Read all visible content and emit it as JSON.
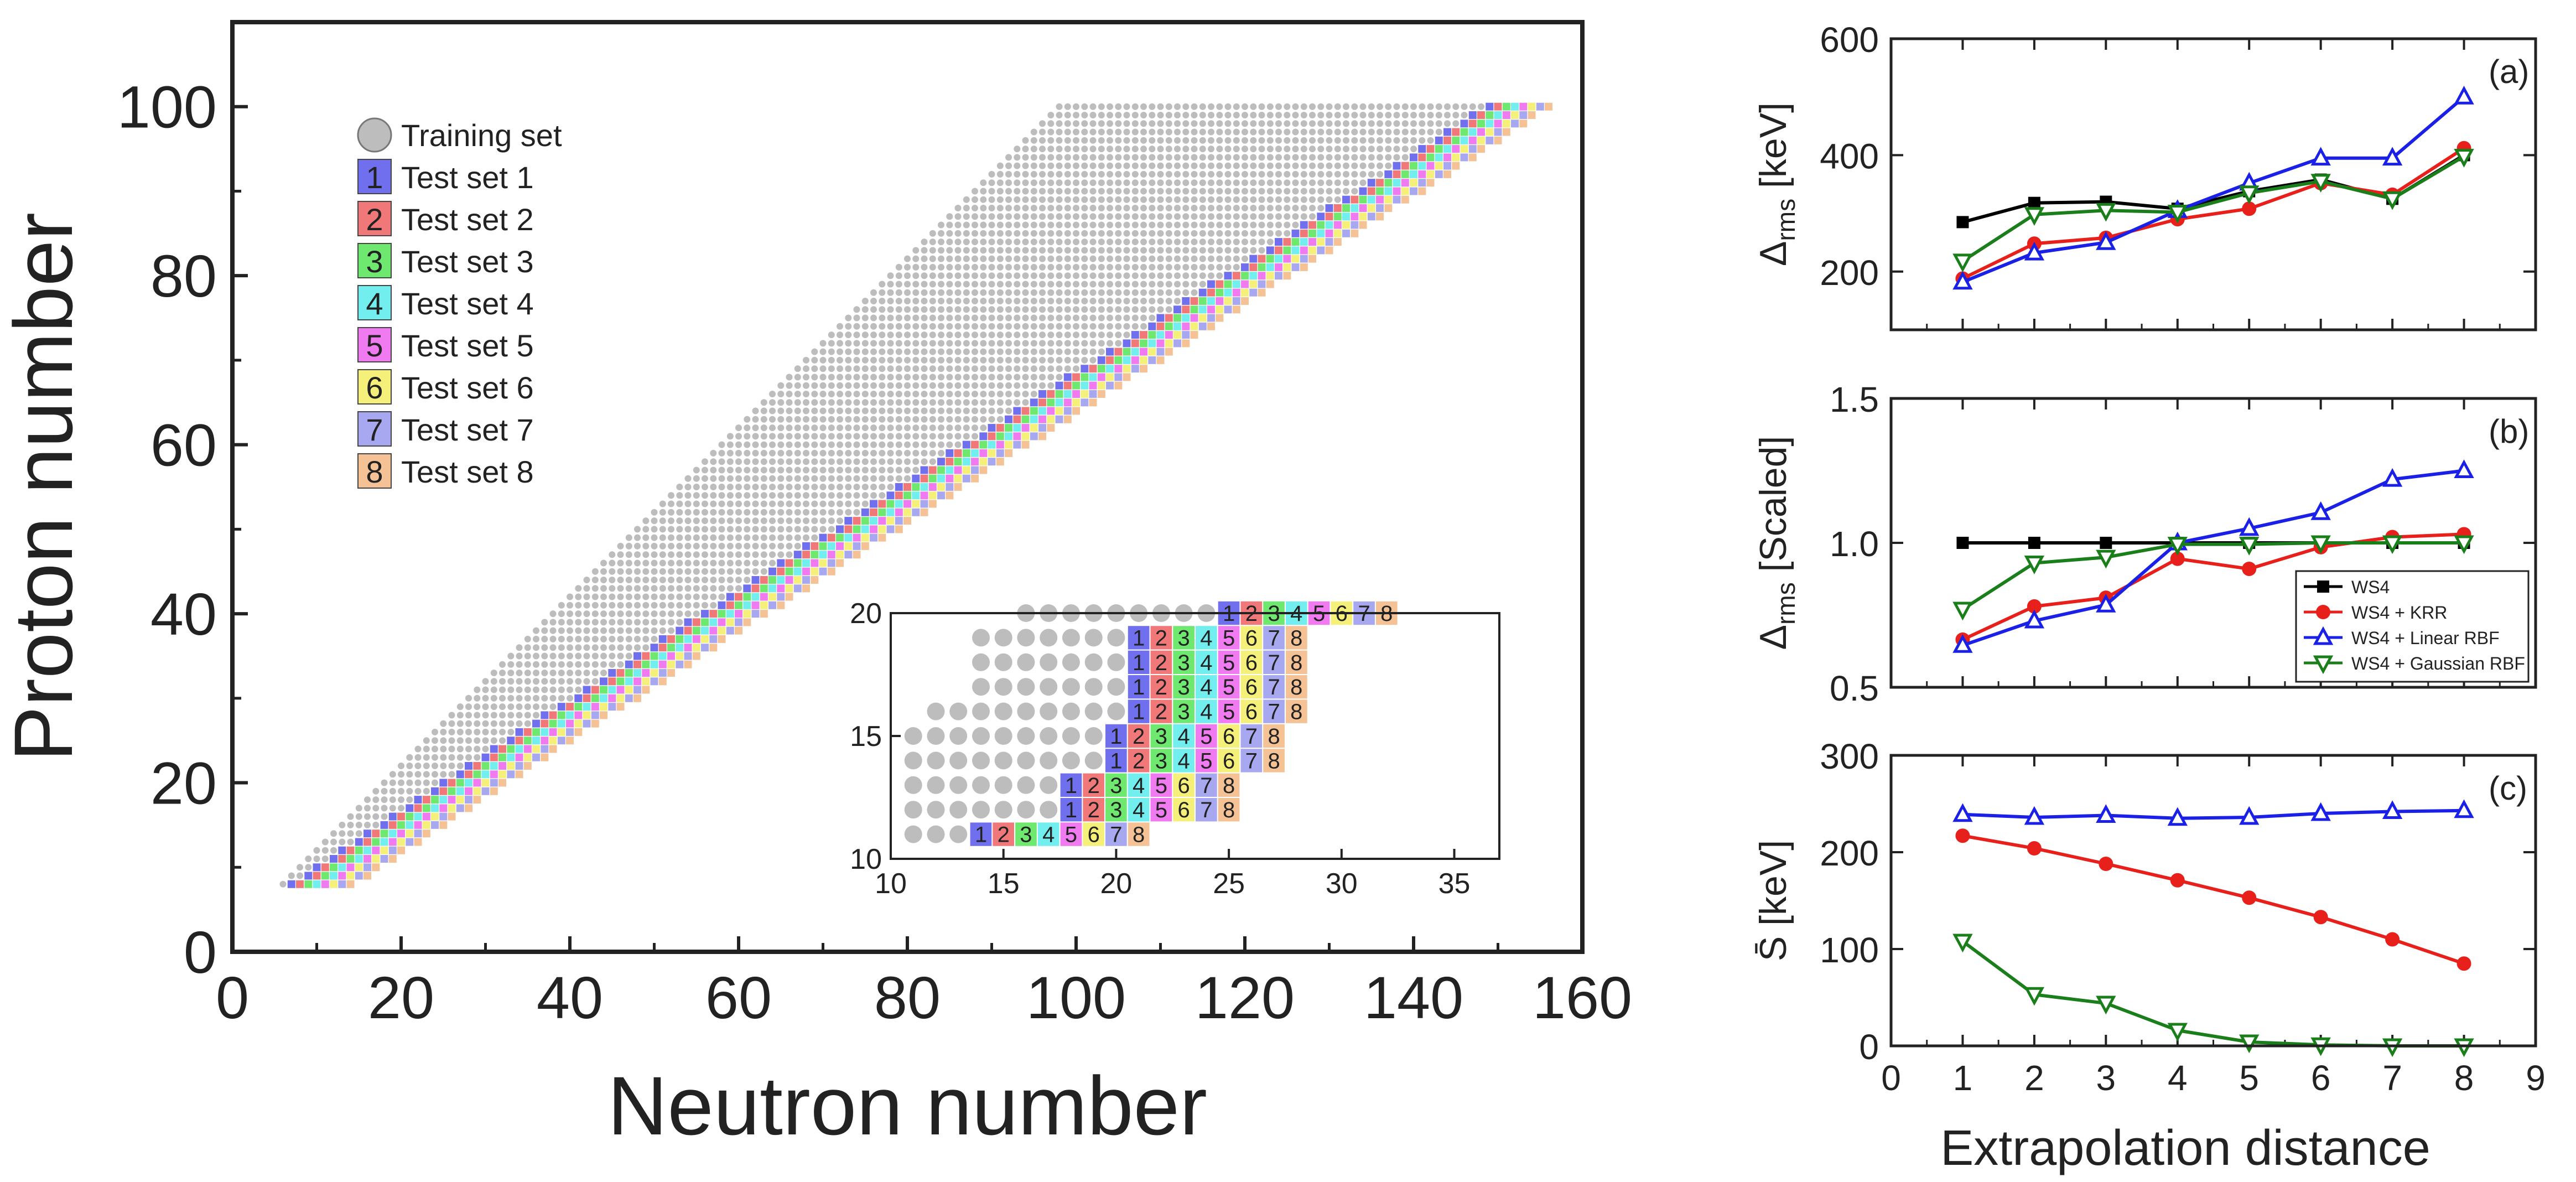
{
  "chart_data": [
    {
      "id": "nuclide-chart",
      "type": "scatter",
      "xlabel": "Neutron number",
      "ylabel": "Proton number",
      "xlim": [
        0,
        160
      ],
      "ylim": [
        0,
        110
      ],
      "xticks": [
        0,
        20,
        40,
        60,
        80,
        100,
        120,
        140,
        160
      ],
      "yticks": [
        0,
        20,
        40,
        60,
        80,
        100
      ],
      "legend_position": "top-left",
      "legend": [
        {
          "label": "Training set",
          "marker": "circle",
          "color": "#bdbdbd"
        },
        {
          "label": "Test set 1",
          "num": "1",
          "color": "#7070ee"
        },
        {
          "label": "Test set 2",
          "num": "2",
          "color": "#f07878"
        },
        {
          "label": "Test set 3",
          "num": "3",
          "color": "#6ee86e"
        },
        {
          "label": "Test set 4",
          "num": "4",
          "color": "#72eeee"
        },
        {
          "label": "Test set 5",
          "num": "5",
          "color": "#f07af0"
        },
        {
          "label": "Test set 6",
          "num": "6",
          "color": "#f4f07a"
        },
        {
          "label": "Test set 7",
          "num": "7",
          "color": "#a8a8f0"
        },
        {
          "label": "Test set 8",
          "num": "8",
          "color": "#f4c294"
        }
      ],
      "series": [
        {
          "name": "Training set",
          "description_range": "Z 8–100, N ≈ 8–156"
        },
        {
          "name": "Test sets 1–8",
          "description_range": "8 most neutron-rich known isotopes per Z"
        }
      ],
      "inset": {
        "xlim": [
          10,
          37
        ],
        "ylim": [
          10,
          20
        ],
        "xticks": [
          10,
          15,
          20,
          25,
          30,
          35
        ],
        "yticks": [
          10,
          15,
          20
        ],
        "rows": [
          {
            "z": 11,
            "training_n": [
              11,
              12,
              13
            ],
            "first_test_n": 14
          },
          {
            "z": 12,
            "training_n": [
              11,
              12,
              13,
              14,
              15,
              16,
              17
            ],
            "first_test_n": 18
          },
          {
            "z": 13,
            "training_n": [
              11,
              12,
              13,
              14,
              15,
              16,
              17
            ],
            "first_test_n": 18
          },
          {
            "z": 14,
            "training_n": [
              11,
              12,
              13,
              14,
              15,
              16,
              17,
              18,
              19
            ],
            "first_test_n": 20
          },
          {
            "z": 15,
            "training_n": [
              11,
              12,
              13,
              14,
              15,
              16,
              17,
              18,
              19
            ],
            "first_test_n": 20
          },
          {
            "z": 16,
            "training_n": [
              12,
              13,
              14,
              15,
              16,
              17,
              18,
              19,
              20
            ],
            "first_test_n": 21
          },
          {
            "z": 17,
            "training_n": [
              14,
              15,
              16,
              17,
              18,
              19,
              20
            ],
            "first_test_n": 21
          },
          {
            "z": 18,
            "training_n": [
              14,
              15,
              16,
              17,
              18,
              19,
              20
            ],
            "first_test_n": 21
          },
          {
            "z": 19,
            "training_n": [
              14,
              15,
              16,
              17,
              18,
              19,
              20
            ],
            "first_test_n": 21
          },
          {
            "z": 20,
            "training_n": [
              16,
              17,
              18,
              19,
              20,
              21,
              22,
              23,
              24
            ],
            "first_test_n": 25
          }
        ]
      }
    },
    {
      "id": "panel-a",
      "type": "line",
      "panel_label": "(a)",
      "ylabel_main": "Δ",
      "ylabel_sub": "rms",
      "ylabel_rest": " [keV]",
      "ylim": [
        100,
        600
      ],
      "yticks": [
        200,
        400,
        600
      ],
      "x": [
        1,
        2,
        3,
        4,
        5,
        6,
        7,
        8
      ],
      "series": [
        {
          "key": "ws4",
          "values": [
            285,
            318,
            320,
            308,
            338,
            358,
            325,
            400
          ]
        },
        {
          "key": "krr",
          "values": [
            188,
            248,
            258,
            290,
            308,
            352,
            332,
            412
          ]
        },
        {
          "key": "linear",
          "values": [
            182,
            232,
            250,
            305,
            352,
            395,
            395,
            500
          ]
        },
        {
          "key": "gauss",
          "values": [
            218,
            298,
            305,
            302,
            335,
            355,
            325,
            398
          ]
        }
      ]
    },
    {
      "id": "panel-b",
      "type": "line",
      "panel_label": "(b)",
      "ylabel_main": "Δ",
      "ylabel_sub": "rms",
      "ylabel_rest": " [Scaled]",
      "ylim": [
        0.5,
        1.5
      ],
      "yticks": [
        0.5,
        1.0,
        1.5
      ],
      "ytick_labels": [
        "0.5",
        "1.0",
        "1.5"
      ],
      "x": [
        1,
        2,
        3,
        4,
        5,
        6,
        7,
        8
      ],
      "legend_position": "bottom-right",
      "series": [
        {
          "key": "ws4",
          "name": "WS4",
          "values": [
            1.0,
            1.0,
            1.0,
            1.0,
            1.0,
            1.0,
            1.0,
            1.0
          ]
        },
        {
          "key": "krr",
          "name": "WS4 + KRR",
          "values": [
            0.665,
            0.78,
            0.81,
            0.945,
            0.91,
            0.985,
            1.02,
            1.03
          ]
        },
        {
          "key": "linear",
          "name": "WS4 + Linear RBF",
          "values": [
            0.645,
            0.73,
            0.785,
            1.0,
            1.05,
            1.105,
            1.22,
            1.25
          ]
        },
        {
          "key": "gauss",
          "name": "WS4 + Gaussian RBF",
          "values": [
            0.77,
            0.93,
            0.95,
            0.995,
            0.995,
            1.0,
            1.0,
            1.0
          ]
        }
      ]
    },
    {
      "id": "panel-c",
      "type": "line",
      "panel_label": "(c)",
      "ylabel_main": "S̄",
      "ylabel_rest": " [keV]",
      "ylim": [
        0,
        300
      ],
      "yticks": [
        0,
        100,
        200,
        300
      ],
      "xlabel": "Extrapolation distance",
      "xlim": [
        0,
        9
      ],
      "xticks": [
        0,
        1,
        2,
        3,
        4,
        5,
        6,
        7,
        8,
        9
      ],
      "x": [
        1,
        2,
        3,
        4,
        5,
        6,
        7,
        8
      ],
      "series": [
        {
          "key": "krr",
          "values": [
            217,
            204,
            188,
            171,
            153,
            133,
            110,
            85
          ]
        },
        {
          "key": "linear",
          "values": [
            239,
            236,
            238,
            235,
            236,
            240,
            242,
            243
          ]
        },
        {
          "key": "gauss",
          "values": [
            108,
            53,
            44,
            16,
            4,
            1,
            0,
            0
          ]
        }
      ]
    }
  ],
  "styles": {
    "ws4": {
      "color": "#000000",
      "marker": "square"
    },
    "krr": {
      "color": "#e8201c",
      "marker": "circle"
    },
    "linear": {
      "color": "#1a20e6",
      "marker": "triangle-up"
    },
    "gauss": {
      "color": "#1a7f1a",
      "marker": "triangle-down"
    },
    "training": "#bdbdbd"
  }
}
